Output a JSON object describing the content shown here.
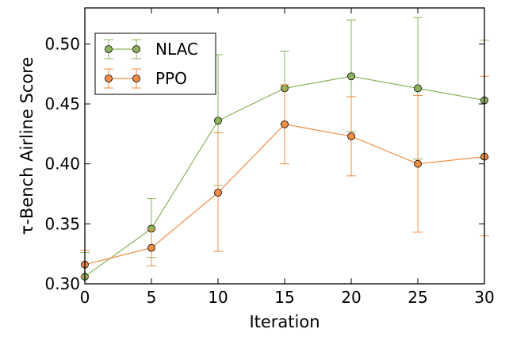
{
  "chart_data": {
    "type": "line",
    "title": "",
    "xlabel": "Iteration",
    "ylabel": "τ-Bench Airline Score",
    "xlim": [
      0,
      30
    ],
    "ylim": [
      0.3,
      0.53
    ],
    "x_ticks": [
      0,
      5,
      10,
      15,
      20,
      25,
      30
    ],
    "y_ticks": [
      0.3,
      0.35,
      0.4,
      0.45,
      0.5
    ],
    "x_tick_labels": [
      "0",
      "5",
      "10",
      "15",
      "20",
      "25",
      "30"
    ],
    "y_tick_labels": [
      "0.30",
      "0.35",
      "0.40",
      "0.45",
      "0.50"
    ],
    "legend_position": "top-left",
    "grid": false,
    "x": [
      0,
      5,
      10,
      15,
      20,
      25,
      30
    ],
    "series": [
      {
        "name": "NLAC",
        "color": "#8db35c",
        "values": [
          0.306,
          0.346,
          0.436,
          0.463,
          0.473,
          0.463,
          0.453
        ],
        "err_low": [
          0.306,
          0.322,
          0.382,
          0.433,
          0.427,
          0.404,
          0.405
        ],
        "err_high": [
          0.326,
          0.371,
          0.491,
          0.494,
          0.52,
          0.522,
          0.503
        ]
      },
      {
        "name": "PPO",
        "color": "#f28c43",
        "values": [
          0.316,
          0.33,
          0.376,
          0.433,
          0.423,
          0.4,
          0.406
        ],
        "err_low": [
          0.306,
          0.315,
          0.327,
          0.4,
          0.39,
          0.343,
          0.34
        ],
        "err_high": [
          0.328,
          0.345,
          0.426,
          0.466,
          0.456,
          0.457,
          0.473
        ]
      }
    ]
  }
}
